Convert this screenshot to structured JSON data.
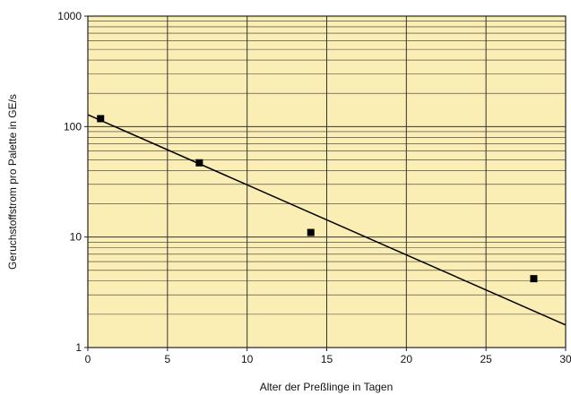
{
  "chart_data": {
    "type": "scatter",
    "title": "",
    "xlabel": "Alter der Preßlinge in Tagen",
    "ylabel": "Geruchstoffstrom pro Palette in GE/s",
    "x_scale": "linear",
    "y_scale": "log",
    "xlim": [
      0,
      30
    ],
    "ylim": [
      1,
      1000
    ],
    "x_ticks": [
      "0",
      "5",
      "10",
      "15",
      "20",
      "25",
      "30"
    ],
    "y_ticks": [
      "1",
      "10",
      "100",
      "1000"
    ],
    "grid": true,
    "legend": "none",
    "series": [
      {
        "type": "scatter",
        "marker": "square",
        "points": [
          [
            0.8,
            118
          ],
          [
            7,
            47
          ],
          [
            14,
            11
          ],
          [
            28,
            4.2
          ]
        ]
      },
      {
        "type": "line",
        "points": [
          [
            0,
            128
          ],
          [
            30,
            1.6
          ]
        ]
      }
    ],
    "colors": {
      "plot_background": "#fbeeb4",
      "grid": "#333333",
      "marker": "#000000",
      "line": "#000000"
    }
  }
}
